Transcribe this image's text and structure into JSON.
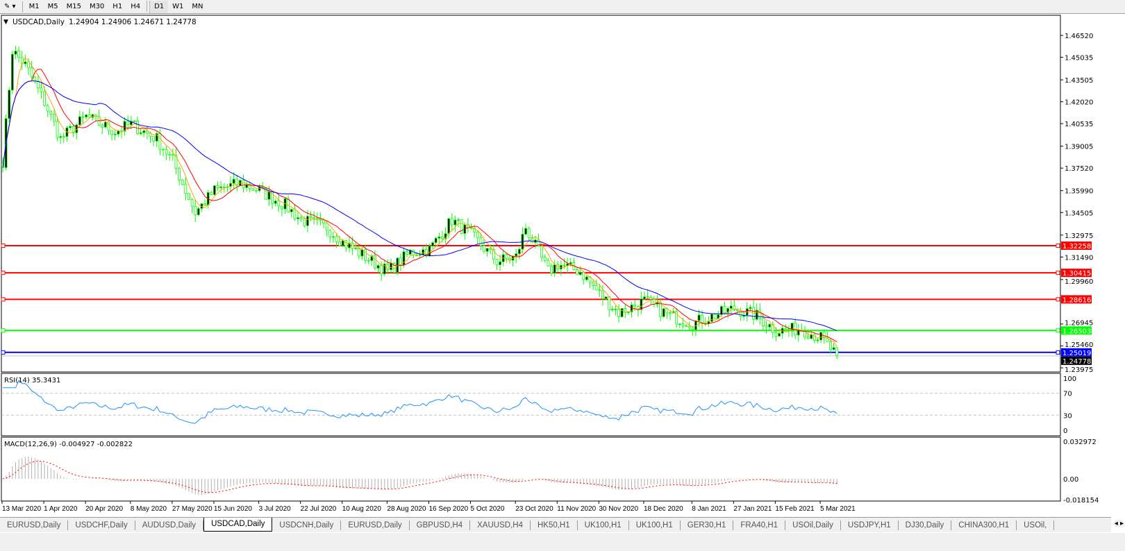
{
  "toolbar": {
    "timeframes": [
      "M1",
      "M5",
      "M15",
      "M30",
      "H1",
      "H4",
      "D1",
      "W1",
      "MN"
    ],
    "active": "D1"
  },
  "chart_data": {
    "type": "candlestick",
    "title": "USDCAD,Daily",
    "ohlc_last": "1.24904 1.24906 1.24671 1.24778",
    "colors": {
      "bull": "#00ff00",
      "bear": "#00ff00",
      "ma_fast": "#ffa500",
      "ma_mid": "#ff0000",
      "ma_slow": "#0000ff"
    },
    "ylim": [
      1.233,
      1.479
    ],
    "price_ticks": [
      "1.46520",
      "1.45035",
      "1.43505",
      "1.42020",
      "1.40535",
      "1.39005",
      "1.37520",
      "1.35990",
      "1.34505",
      "1.32975",
      "1.31490",
      "1.29960",
      "1.26945",
      "1.25460",
      "1.23975"
    ],
    "date_ticks": [
      "13 Mar 2020",
      "1 Apr 2020",
      "20 Apr 2020",
      "8 May 2020",
      "27 May 2020",
      "15 Jun 2020",
      "3 Jul 2020",
      "22 Jul 2020",
      "10 Aug 2020",
      "28 Aug 2020",
      "16 Sep 2020",
      "5 Oct 2020",
      "23 Oct 2020",
      "11 Nov 2020",
      "30 Nov 2020",
      "18 Dec 2020",
      "8 Jan 2021",
      "27 Jan 2021",
      "15 Feb 2021",
      "5 Mar 2021"
    ],
    "close_path": [
      [
        "2020-03-13",
        1.38
      ],
      [
        "2020-03-18",
        1.455
      ],
      [
        "2020-03-24",
        1.445
      ],
      [
        "2020-04-01",
        1.42
      ],
      [
        "2020-04-08",
        1.395
      ],
      [
        "2020-04-20",
        1.41
      ],
      [
        "2020-05-01",
        1.4
      ],
      [
        "2020-05-08",
        1.405
      ],
      [
        "2020-05-20",
        1.395
      ],
      [
        "2020-05-27",
        1.38
      ],
      [
        "2020-06-05",
        1.345
      ],
      [
        "2020-06-15",
        1.36
      ],
      [
        "2020-06-25",
        1.365
      ],
      [
        "2020-07-03",
        1.36
      ],
      [
        "2020-07-15",
        1.35
      ],
      [
        "2020-07-22",
        1.34
      ],
      [
        "2020-08-03",
        1.335
      ],
      [
        "2020-08-10",
        1.325
      ],
      [
        "2020-08-28",
        1.305
      ],
      [
        "2020-09-08",
        1.318
      ],
      [
        "2020-09-16",
        1.32
      ],
      [
        "2020-09-25",
        1.34
      ],
      [
        "2020-10-05",
        1.33
      ],
      [
        "2020-10-15",
        1.312
      ],
      [
        "2020-10-23",
        1.315
      ],
      [
        "2020-10-28",
        1.335
      ],
      [
        "2020-11-06",
        1.305
      ],
      [
        "2020-11-11",
        1.31
      ],
      [
        "2020-11-20",
        1.305
      ],
      [
        "2020-11-30",
        1.29
      ],
      [
        "2020-12-08",
        1.277
      ],
      [
        "2020-12-18",
        1.285
      ],
      [
        "2020-12-30",
        1.275
      ],
      [
        "2021-01-08",
        1.27
      ],
      [
        "2021-01-27",
        1.28
      ],
      [
        "2021-02-05",
        1.275
      ],
      [
        "2021-02-15",
        1.265
      ],
      [
        "2021-02-25",
        1.266
      ],
      [
        "2021-03-05",
        1.26
      ],
      [
        "2021-03-12",
        1.2478
      ]
    ],
    "levels": [
      {
        "price": "1.32258",
        "color": "#ff0000"
      },
      {
        "price": "1.30415",
        "color": "#ff0000"
      },
      {
        "price": "1.28616",
        "color": "#ff0000"
      },
      {
        "price": "1.26503",
        "color": "#00ff00"
      },
      {
        "price": "1.25019",
        "color": "#0000ff"
      }
    ],
    "current_price": "1.24778",
    "rsi": {
      "label": "RSI(14) 35.3431",
      "ticks": [
        "100",
        "70",
        "30",
        "0"
      ],
      "color": "#1e90ff"
    },
    "macd": {
      "label": "MACD(12,26,9) -0.004927 -0.002822",
      "ticks": [
        "0.032972",
        "0.00",
        "-0.018154"
      ],
      "signal_color": "#ff0000",
      "hist_color": "#b0b0b0"
    }
  },
  "tabs": [
    "EURUSD,Daily",
    "USDCHF,Daily",
    "AUDUSD,Daily",
    "USDCAD,Daily",
    "USDCNH,Daily",
    "EURUSD,Daily",
    "GBPUSD,H4",
    "XAUUSD,H4",
    "HK50,H1",
    "UK100,H1",
    "UK100,H1",
    "GER30,H1",
    "FRA40,H1",
    "USOil,Daily",
    "USDJPY,H1",
    "DJ30,Daily",
    "CHINA300,H1",
    "USOil,"
  ],
  "active_tab": 3
}
